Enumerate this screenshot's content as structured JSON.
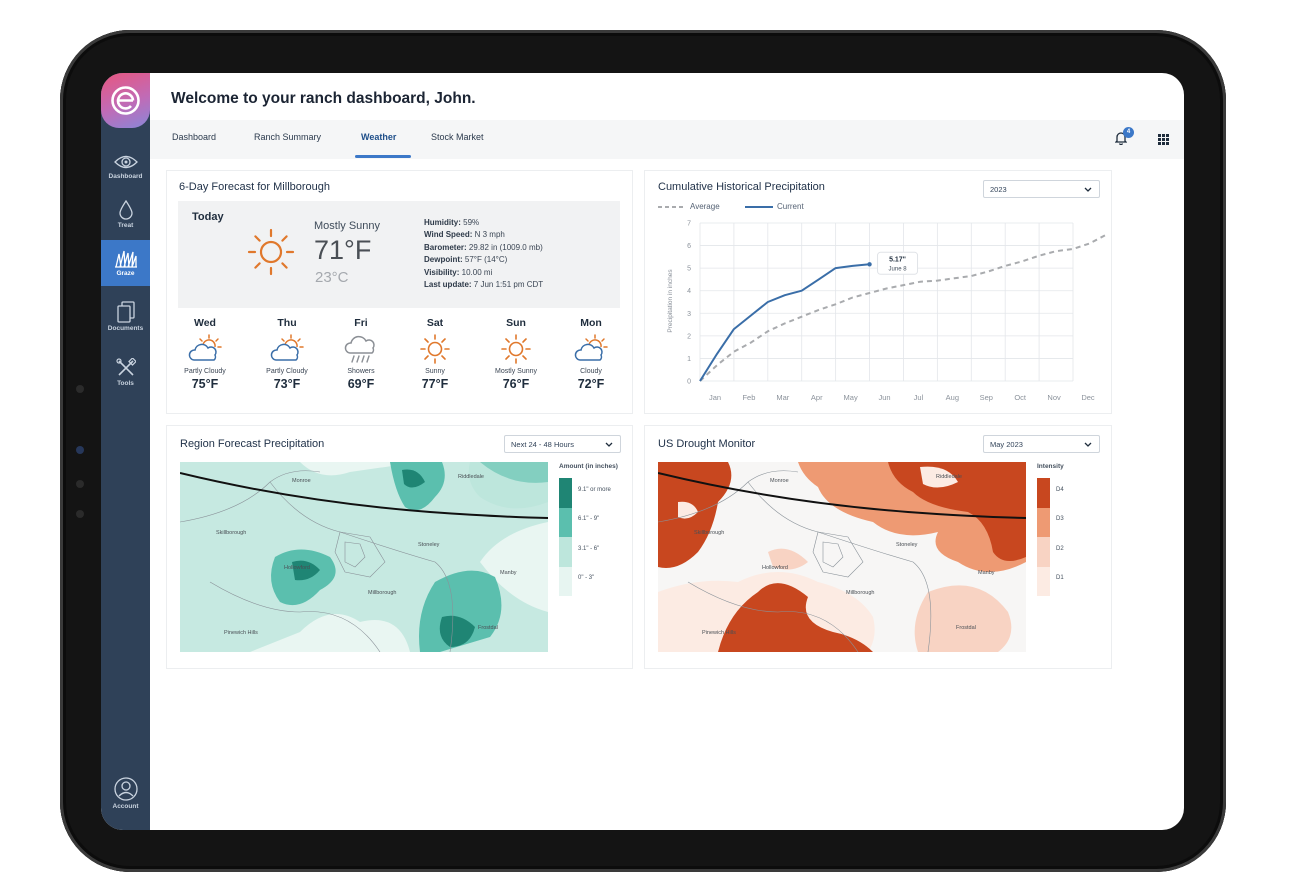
{
  "app": {
    "welcome": "Welcome to your ranch dashboard, John."
  },
  "sidebar": {
    "items": [
      {
        "label": "Dashboard",
        "icon": "eye-icon"
      },
      {
        "label": "Treat",
        "icon": "drop-icon"
      },
      {
        "label": "Graze",
        "icon": "grass-icon",
        "active": true
      },
      {
        "label": "Documents",
        "icon": "documents-icon"
      },
      {
        "label": "Tools",
        "icon": "tools-icon"
      }
    ],
    "account": {
      "label": "Account",
      "icon": "account-icon"
    }
  },
  "tabs": [
    {
      "label": "Dashboard"
    },
    {
      "label": "Ranch Summary"
    },
    {
      "label": "Weather",
      "active": true
    },
    {
      "label": "Stock Market"
    }
  ],
  "header": {
    "notification_count": "4"
  },
  "forecast": {
    "title": "6-Day Forecast for Millborough",
    "today": {
      "label": "Today",
      "condition": "Mostly Sunny",
      "temp_f": "71°F",
      "temp_c": "23°C",
      "details": [
        {
          "label": "Humidity:",
          "value": "59%"
        },
        {
          "label": "Wind Speed:",
          "value": "N 3 mph"
        },
        {
          "label": "Barometer:",
          "value": "29.82 in (1009.0 mb)"
        },
        {
          "label": "Dewpoint:",
          "value": "57°F (14°C)"
        },
        {
          "label": "Visibility:",
          "value": "10.00 mi"
        },
        {
          "label": "Last update:",
          "value": "7 Jun 1:51 pm CDT"
        }
      ]
    },
    "days": [
      {
        "name": "Wed",
        "condition": "Partly Cloudy",
        "temp": "75°F",
        "icon": "partly-cloudy-icon"
      },
      {
        "name": "Thu",
        "condition": "Partly Cloudy",
        "temp": "73°F",
        "icon": "partly-cloudy-icon"
      },
      {
        "name": "Fri",
        "condition": "Showers",
        "temp": "69°F",
        "icon": "showers-icon"
      },
      {
        "name": "Sat",
        "condition": "Sunny",
        "temp": "77°F",
        "icon": "sun-icon"
      },
      {
        "name": "Sun",
        "condition": "Mostly Sunny",
        "temp": "76°F",
        "icon": "sun-icon"
      },
      {
        "name": "Mon",
        "condition": "Cloudy",
        "temp": "72°F",
        "icon": "partly-cloudy-icon"
      }
    ]
  },
  "precip": {
    "title": "Cumulative Historical Precipitation",
    "year_select": "2023",
    "tooltip_value": "5.17\"",
    "tooltip_date": "June 8"
  },
  "chart_data": {
    "type": "line",
    "title": "Cumulative Historical Precipitation",
    "ylabel": "Precipitation in inches",
    "xlabel": "",
    "x": [
      "Jan",
      "Feb",
      "Mar",
      "Apr",
      "May",
      "Jun",
      "Jul",
      "Aug",
      "Sep",
      "Oct",
      "Nov",
      "Dec"
    ],
    "ylim": [
      0,
      7
    ],
    "yticks": [
      0,
      1,
      2,
      3,
      4,
      5,
      6,
      7
    ],
    "grid": true,
    "legend": "top-left",
    "series": [
      {
        "name": "Average",
        "style": "dashed",
        "color": "#a9abae",
        "points": [
          [
            0,
            0
          ],
          [
            0.5,
            0.7
          ],
          [
            1,
            1.3
          ],
          [
            1.5,
            1.7
          ],
          [
            2,
            2.2
          ],
          [
            2.5,
            2.55
          ],
          [
            3,
            2.85
          ],
          [
            3.5,
            3.15
          ],
          [
            4,
            3.4
          ],
          [
            4.5,
            3.7
          ],
          [
            5,
            3.9
          ],
          [
            5.5,
            4.1
          ],
          [
            6,
            4.25
          ],
          [
            6.5,
            4.4
          ],
          [
            7,
            4.45
          ],
          [
            7.5,
            4.55
          ],
          [
            8,
            4.65
          ],
          [
            8.5,
            4.85
          ],
          [
            9,
            5.1
          ],
          [
            9.5,
            5.3
          ],
          [
            10,
            5.55
          ],
          [
            10.5,
            5.75
          ],
          [
            11,
            5.85
          ],
          [
            11.5,
            6.1
          ],
          [
            12,
            6.5
          ]
        ]
      },
      {
        "name": "Current",
        "style": "solid",
        "color": "#3a6ea8",
        "points": [
          [
            0,
            0
          ],
          [
            0.5,
            1.2
          ],
          [
            1,
            2.3
          ],
          [
            1.5,
            2.9
          ],
          [
            2,
            3.5
          ],
          [
            2.5,
            3.8
          ],
          [
            3,
            4.0
          ],
          [
            3.5,
            4.5
          ],
          [
            4,
            5.0
          ],
          [
            4.5,
            5.1
          ],
          [
            5,
            5.17
          ]
        ]
      }
    ],
    "annotation": {
      "x": 5,
      "y": 5.17,
      "label": "5.17\"",
      "sublabel": "June 8"
    }
  },
  "region": {
    "title": "Region Forecast Precipitation",
    "select": "Next 24 - 48 Hours",
    "legend_title": "Amount (in inches)",
    "legend": [
      {
        "label": "9.1\" or more",
        "color": "#1f8574"
      },
      {
        "label": "6.1\" - 9\"",
        "color": "#5bbfae"
      },
      {
        "label": "3.1\" - 6\"",
        "color": "#bde6dc"
      },
      {
        "label": "0\" - 3\"",
        "color": "#e7f5f1"
      }
    ],
    "towns": [
      "Monroe",
      "Riddledale",
      "Skillborough",
      "Stoneley",
      "Hollowford",
      "Manby",
      "Millborough",
      "Frostdal",
      "Pinewich Hills"
    ]
  },
  "drought": {
    "title": "US Drought Monitor",
    "select": "May 2023",
    "legend_title": "Intensity",
    "legend": [
      {
        "label": "D4",
        "color": "#c8471f"
      },
      {
        "label": "D3",
        "color": "#ee9a73"
      },
      {
        "label": "D2",
        "color": "#f8d3c3"
      },
      {
        "label": "D1",
        "color": "#fcebe3"
      }
    ],
    "towns": [
      "Monroe",
      "Riddledale",
      "Skillborough",
      "Stoneley",
      "Hollowford",
      "Manby",
      "Millborough",
      "Frostdal",
      "Pinewich Hills"
    ]
  }
}
